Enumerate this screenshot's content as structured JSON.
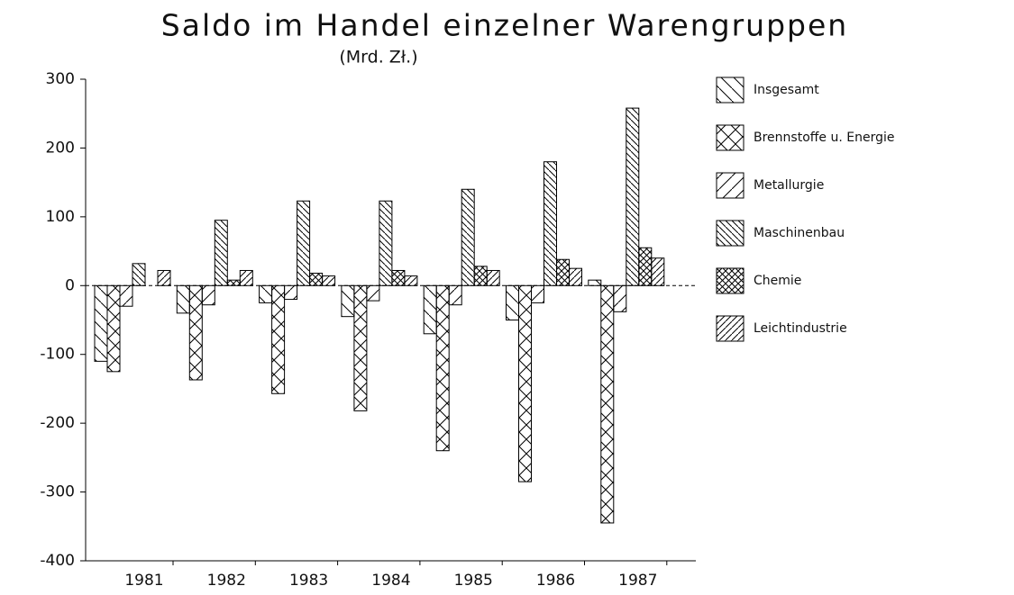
{
  "chart_data": {
    "type": "bar",
    "title": "Saldo im Handel einzelner Warengruppen",
    "subtitle": "(Mrd. Zł.)",
    "categories": [
      "1981",
      "1982",
      "1983",
      "1984",
      "1985",
      "1986",
      "1987"
    ],
    "series": [
      {
        "name": "Insgesamt",
        "color": "#000000",
        "pattern": "hatch-back",
        "values": [
          -110,
          -40,
          -25,
          -45,
          -70,
          -50,
          8
        ]
      },
      {
        "name": "Brennstoffe u. Energie",
        "color": "#000000",
        "pattern": "hatch-cross",
        "values": [
          -125,
          -137,
          -157,
          -182,
          -240,
          -285,
          -345
        ]
      },
      {
        "name": "Metallurgie",
        "color": "#000000",
        "pattern": "hatch-fwd",
        "values": [
          -30,
          -28,
          -20,
          -22,
          -28,
          -25,
          -38
        ]
      },
      {
        "name": "Maschinenbau",
        "color": "#000000",
        "pattern": "hatch-back-dense",
        "values": [
          32,
          95,
          123,
          123,
          140,
          180,
          258
        ]
      },
      {
        "name": "Chemie",
        "color": "#000000",
        "pattern": "hatch-cross-dense",
        "values": [
          0,
          8,
          18,
          22,
          28,
          38,
          55
        ]
      },
      {
        "name": "Leichtindustrie",
        "color": "#000000",
        "pattern": "hatch-fwd-dense",
        "values": [
          22,
          22,
          14,
          14,
          22,
          25,
          40
        ]
      }
    ],
    "ylim": [
      -400,
      300
    ],
    "yticks": [
      -400,
      -300,
      -200,
      -100,
      0,
      100,
      200,
      300
    ],
    "legend": "right"
  }
}
